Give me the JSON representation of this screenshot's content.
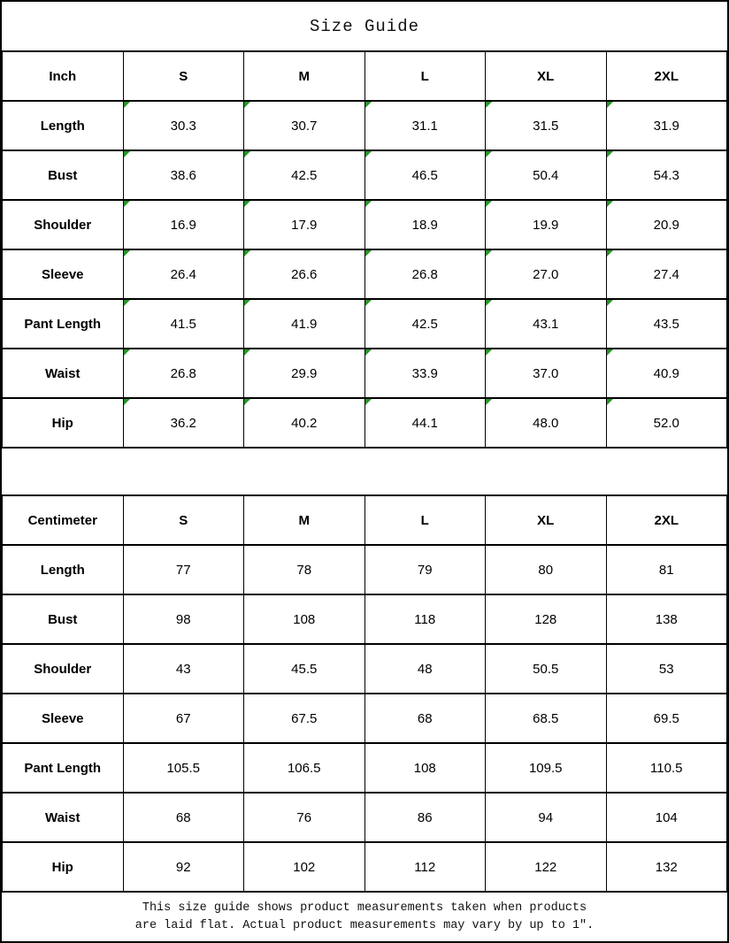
{
  "title": "Size Guide",
  "colors": {
    "corner_mark_green": "#289628",
    "border": "#000000",
    "background": "#ffffff"
  },
  "footer": {
    "line1": "This size guide shows product measurements taken when products",
    "line2": "are laid flat. Actual product measurements may vary by up to 1″."
  },
  "chart_data": [
    {
      "type": "table",
      "title": "Size Guide",
      "unit": "Inch",
      "corner_marks": true,
      "columns": [
        "Inch",
        "S",
        "M",
        "L",
        "XL",
        "2XL"
      ],
      "rows": [
        [
          "Length",
          "30.3",
          "30.7",
          "31.1",
          "31.5",
          "31.9"
        ],
        [
          "Bust",
          "38.6",
          "42.5",
          "46.5",
          "50.4",
          "54.3"
        ],
        [
          "Shoulder",
          "16.9",
          "17.9",
          "18.9",
          "19.9",
          "20.9"
        ],
        [
          "Sleeve",
          "26.4",
          "26.6",
          "26.8",
          "27.0",
          "27.4"
        ],
        [
          "Pant Length",
          "41.5",
          "41.9",
          "42.5",
          "43.1",
          "43.5"
        ],
        [
          "Waist",
          "26.8",
          "29.9",
          "33.9",
          "37.0",
          "40.9"
        ],
        [
          "Hip",
          "36.2",
          "40.2",
          "44.1",
          "48.0",
          "52.0"
        ]
      ]
    },
    {
      "type": "table",
      "title": "Size Guide",
      "unit": "Centimeter",
      "corner_marks": false,
      "columns": [
        "Centimeter",
        "S",
        "M",
        "L",
        "XL",
        "2XL"
      ],
      "rows": [
        [
          "Length",
          "77",
          "78",
          "79",
          "80",
          "81"
        ],
        [
          "Bust",
          "98",
          "108",
          "118",
          "128",
          "138"
        ],
        [
          "Shoulder",
          "43",
          "45.5",
          "48",
          "50.5",
          "53"
        ],
        [
          "Sleeve",
          "67",
          "67.5",
          "68",
          "68.5",
          "69.5"
        ],
        [
          "Pant Length",
          "105.5",
          "106.5",
          "108",
          "109.5",
          "110.5"
        ],
        [
          "Waist",
          "68",
          "76",
          "86",
          "94",
          "104"
        ],
        [
          "Hip",
          "92",
          "102",
          "112",
          "122",
          "132"
        ]
      ]
    }
  ]
}
